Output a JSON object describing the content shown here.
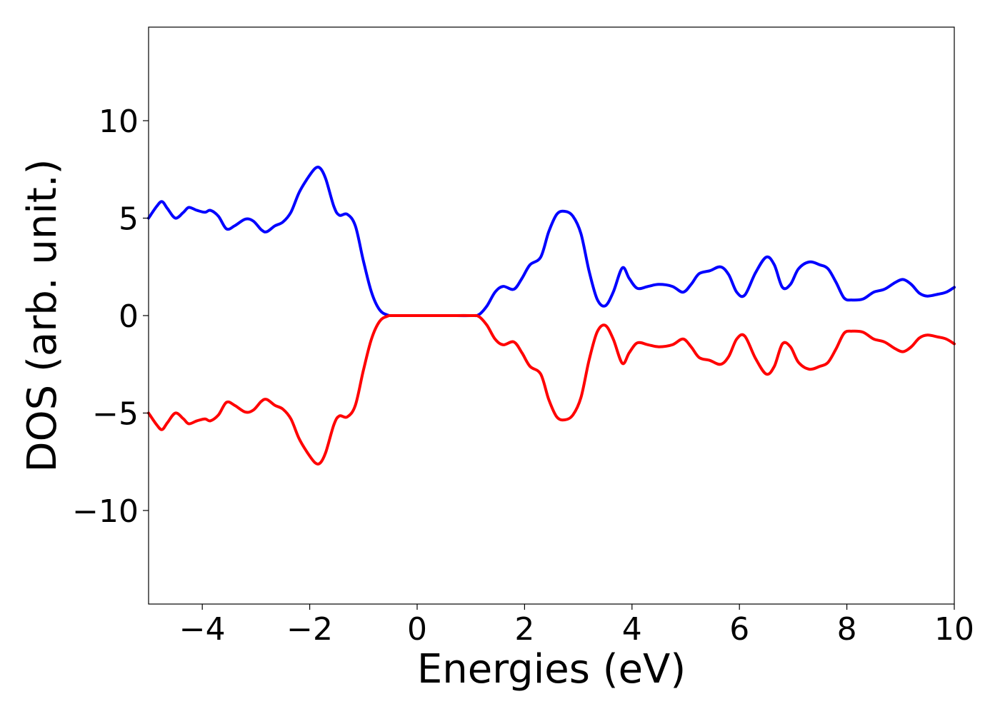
{
  "chart_data": {
    "type": "line",
    "title": "",
    "xlabel": "Energies (eV)",
    "ylabel": "DOS (arb. unit.)",
    "xlim": [
      -5,
      10
    ],
    "ylim": [
      -14.8,
      14.8
    ],
    "xticks": [
      -4,
      -2,
      0,
      2,
      4,
      6,
      8,
      10
    ],
    "xtick_labels": [
      "−4",
      "−2",
      "0",
      "2",
      "4",
      "6",
      "8",
      "10"
    ],
    "yticks": [
      -10,
      -5,
      0,
      5,
      10
    ],
    "ytick_labels": [
      "−10",
      "−5",
      "0",
      "5",
      "10"
    ],
    "grid": false,
    "legend": "none",
    "series": [
      {
        "color": "#0000ff",
        "points": [
          [
            -5.0,
            5.0
          ],
          [
            -4.85,
            5.6
          ],
          [
            -4.75,
            5.85
          ],
          [
            -4.65,
            5.5
          ],
          [
            -4.5,
            5.0
          ],
          [
            -4.35,
            5.3
          ],
          [
            -4.25,
            5.55
          ],
          [
            -4.1,
            5.4
          ],
          [
            -3.95,
            5.3
          ],
          [
            -3.85,
            5.4
          ],
          [
            -3.7,
            5.1
          ],
          [
            -3.55,
            4.45
          ],
          [
            -3.4,
            4.6
          ],
          [
            -3.2,
            4.95
          ],
          [
            -3.05,
            4.85
          ],
          [
            -2.9,
            4.4
          ],
          [
            -2.8,
            4.3
          ],
          [
            -2.65,
            4.6
          ],
          [
            -2.5,
            4.8
          ],
          [
            -2.35,
            5.3
          ],
          [
            -2.2,
            6.3
          ],
          [
            -2.05,
            7.0
          ],
          [
            -1.9,
            7.55
          ],
          [
            -1.8,
            7.55
          ],
          [
            -1.7,
            7.0
          ],
          [
            -1.55,
            5.6
          ],
          [
            -1.45,
            5.15
          ],
          [
            -1.3,
            5.2
          ],
          [
            -1.15,
            4.6
          ],
          [
            -1.0,
            2.8
          ],
          [
            -0.85,
            1.2
          ],
          [
            -0.7,
            0.3
          ],
          [
            -0.55,
            0.03
          ],
          [
            -0.4,
            0.0
          ],
          [
            0.5,
            0.0
          ],
          [
            1.0,
            0.0
          ],
          [
            1.15,
            0.05
          ],
          [
            1.3,
            0.5
          ],
          [
            1.45,
            1.2
          ],
          [
            1.6,
            1.5
          ],
          [
            1.8,
            1.35
          ],
          [
            1.95,
            1.9
          ],
          [
            2.1,
            2.6
          ],
          [
            2.3,
            3.0
          ],
          [
            2.45,
            4.3
          ],
          [
            2.6,
            5.2
          ],
          [
            2.75,
            5.35
          ],
          [
            2.9,
            5.1
          ],
          [
            3.05,
            4.2
          ],
          [
            3.2,
            2.3
          ],
          [
            3.35,
            0.85
          ],
          [
            3.5,
            0.5
          ],
          [
            3.65,
            1.2
          ],
          [
            3.82,
            2.45
          ],
          [
            3.95,
            1.9
          ],
          [
            4.1,
            1.4
          ],
          [
            4.3,
            1.5
          ],
          [
            4.5,
            1.6
          ],
          [
            4.75,
            1.5
          ],
          [
            4.95,
            1.2
          ],
          [
            5.1,
            1.6
          ],
          [
            5.25,
            2.15
          ],
          [
            5.45,
            2.3
          ],
          [
            5.65,
            2.5
          ],
          [
            5.8,
            2.1
          ],
          [
            5.95,
            1.2
          ],
          [
            6.1,
            1.05
          ],
          [
            6.3,
            2.2
          ],
          [
            6.5,
            3.0
          ],
          [
            6.65,
            2.6
          ],
          [
            6.8,
            1.45
          ],
          [
            6.95,
            1.6
          ],
          [
            7.1,
            2.4
          ],
          [
            7.3,
            2.75
          ],
          [
            7.5,
            2.6
          ],
          [
            7.65,
            2.4
          ],
          [
            7.8,
            1.7
          ],
          [
            7.95,
            0.9
          ],
          [
            8.1,
            0.8
          ],
          [
            8.3,
            0.85
          ],
          [
            8.5,
            1.2
          ],
          [
            8.7,
            1.35
          ],
          [
            8.9,
            1.7
          ],
          [
            9.05,
            1.85
          ],
          [
            9.2,
            1.6
          ],
          [
            9.35,
            1.15
          ],
          [
            9.5,
            1.0
          ],
          [
            9.7,
            1.1
          ],
          [
            9.85,
            1.2
          ],
          [
            10.0,
            1.45
          ]
        ]
      },
      {
        "color": "#ff0000",
        "points": [
          [
            -5.0,
            -5.0
          ],
          [
            -4.85,
            -5.6
          ],
          [
            -4.75,
            -5.85
          ],
          [
            -4.65,
            -5.5
          ],
          [
            -4.5,
            -5.0
          ],
          [
            -4.35,
            -5.3
          ],
          [
            -4.25,
            -5.55
          ],
          [
            -4.1,
            -5.4
          ],
          [
            -3.95,
            -5.3
          ],
          [
            -3.85,
            -5.4
          ],
          [
            -3.7,
            -5.1
          ],
          [
            -3.55,
            -4.45
          ],
          [
            -3.4,
            -4.6
          ],
          [
            -3.2,
            -4.95
          ],
          [
            -3.05,
            -4.85
          ],
          [
            -2.9,
            -4.4
          ],
          [
            -2.8,
            -4.3
          ],
          [
            -2.65,
            -4.6
          ],
          [
            -2.5,
            -4.8
          ],
          [
            -2.35,
            -5.3
          ],
          [
            -2.2,
            -6.3
          ],
          [
            -2.05,
            -7.0
          ],
          [
            -1.9,
            -7.55
          ],
          [
            -1.8,
            -7.55
          ],
          [
            -1.7,
            -7.0
          ],
          [
            -1.55,
            -5.6
          ],
          [
            -1.45,
            -5.15
          ],
          [
            -1.3,
            -5.2
          ],
          [
            -1.15,
            -4.6
          ],
          [
            -1.0,
            -2.8
          ],
          [
            -0.85,
            -1.2
          ],
          [
            -0.7,
            -0.3
          ],
          [
            -0.55,
            -0.03
          ],
          [
            -0.4,
            0.0
          ],
          [
            0.5,
            0.0
          ],
          [
            1.0,
            0.0
          ],
          [
            1.15,
            -0.05
          ],
          [
            1.3,
            -0.5
          ],
          [
            1.45,
            -1.2
          ],
          [
            1.6,
            -1.5
          ],
          [
            1.8,
            -1.35
          ],
          [
            1.95,
            -1.9
          ],
          [
            2.1,
            -2.6
          ],
          [
            2.3,
            -3.0
          ],
          [
            2.45,
            -4.3
          ],
          [
            2.6,
            -5.2
          ],
          [
            2.75,
            -5.35
          ],
          [
            2.9,
            -5.1
          ],
          [
            3.05,
            -4.2
          ],
          [
            3.2,
            -2.3
          ],
          [
            3.35,
            -0.85
          ],
          [
            3.5,
            -0.5
          ],
          [
            3.65,
            -1.2
          ],
          [
            3.82,
            -2.45
          ],
          [
            3.95,
            -1.9
          ],
          [
            4.1,
            -1.4
          ],
          [
            4.3,
            -1.5
          ],
          [
            4.5,
            -1.6
          ],
          [
            4.75,
            -1.5
          ],
          [
            4.95,
            -1.2
          ],
          [
            5.1,
            -1.6
          ],
          [
            5.25,
            -2.15
          ],
          [
            5.45,
            -2.3
          ],
          [
            5.65,
            -2.5
          ],
          [
            5.8,
            -2.1
          ],
          [
            5.95,
            -1.2
          ],
          [
            6.1,
            -1.05
          ],
          [
            6.3,
            -2.2
          ],
          [
            6.5,
            -3.0
          ],
          [
            6.65,
            -2.6
          ],
          [
            6.8,
            -1.45
          ],
          [
            6.95,
            -1.6
          ],
          [
            7.1,
            -2.4
          ],
          [
            7.3,
            -2.75
          ],
          [
            7.5,
            -2.6
          ],
          [
            7.65,
            -2.4
          ],
          [
            7.8,
            -1.7
          ],
          [
            7.95,
            -0.9
          ],
          [
            8.1,
            -0.8
          ],
          [
            8.3,
            -0.85
          ],
          [
            8.5,
            -1.2
          ],
          [
            8.7,
            -1.35
          ],
          [
            8.9,
            -1.7
          ],
          [
            9.05,
            -1.85
          ],
          [
            9.2,
            -1.6
          ],
          [
            9.35,
            -1.15
          ],
          [
            9.5,
            -1.0
          ],
          [
            9.7,
            -1.1
          ],
          [
            9.85,
            -1.2
          ],
          [
            10.0,
            -1.45
          ]
        ]
      }
    ]
  }
}
